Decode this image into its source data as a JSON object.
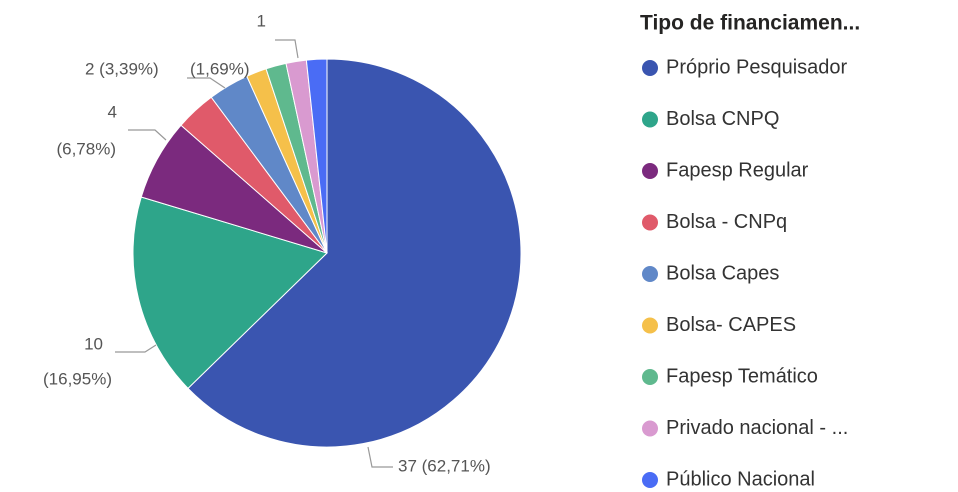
{
  "chart_data": {
    "type": "pie",
    "legend_title": "Tipo de financiamen...",
    "categories": [
      "Próprio Pesquisador",
      "Bolsa CNPQ",
      "Fapesp Regular",
      "Bolsa - CNPq",
      "Bolsa Capes",
      "Bolsa- CAPES",
      "Fapesp Temático",
      "Privado nacional - ...",
      "Público Nacional"
    ],
    "values": [
      37,
      10,
      4,
      2,
      2,
      1,
      1,
      1,
      1
    ],
    "value_labels": [
      [
        "37 (62,71%)"
      ],
      [
        "10",
        "(16,95%)"
      ],
      [
        "4",
        "(6,78%)"
      ],
      null,
      [
        "2 (3,39%)"
      ],
      null,
      null,
      [
        "1",
        "(1,69%)"
      ],
      null
    ],
    "colors": [
      "#3a55b0",
      "#2ea58a",
      "#7b2a7e",
      "#e05a6a",
      "#6088c8",
      "#f5c04a",
      "#5fb98e",
      "#d99ad0",
      "#4a6cf5"
    ],
    "legend": "right"
  }
}
